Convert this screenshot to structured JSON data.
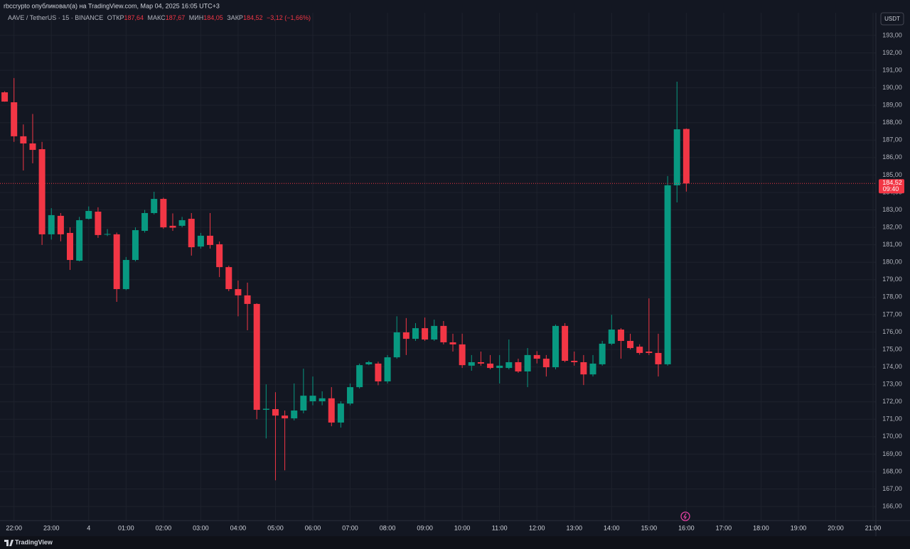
{
  "header": {
    "published": "rbccrypto опубликовал(а) на TradingView.com, Мар 04, 2025 16:05 UTC+3",
    "symbol": "AAVE / TetherUS · 15 · BINANCE",
    "open_label": "ОТКР",
    "open": "187,64",
    "high_label": "МАКС",
    "high": "187,67",
    "low_label": "МИН",
    "low": "184,05",
    "close_label": "ЗАКР",
    "close": "184,52",
    "change": "−3,12 (−1,66%)",
    "currency": "USDT"
  },
  "footer": {
    "brand": "TradingView"
  },
  "chart_data": {
    "type": "candlestick",
    "up_color": "#089981",
    "down_color": "#f23645",
    "grid": true,
    "open": [
      189.74,
      189.17,
      187.22,
      186.81,
      186.48,
      181.6,
      182.66,
      181.68,
      180.09,
      182.49,
      182.9,
      181.58,
      181.6,
      178.46,
      180.13,
      181.8,
      182.82,
      183.63,
      182.09,
      182.09,
      182.49,
      180.9,
      181.52,
      181.03,
      179.72,
      178.46,
      178.1,
      177.61,
      171.54,
      171.58,
      171.21,
      171.05,
      171.5,
      172.03,
      172.03,
      172.2,
      170.81,
      171.9,
      172.84,
      174.15,
      174.19,
      173.17,
      174.55,
      175.98,
      175.61,
      176.22,
      175.57,
      176.35,
      175.41,
      175.29,
      174.07,
      174.27,
      174.19,
      173.94,
      173.94,
      174.27,
      173.74,
      174.68,
      174.47,
      173.98,
      176.35,
      174.35,
      174.27,
      173.57,
      174.15,
      175.33,
      176.14,
      175.49,
      175.16,
      174.88,
      174.8,
      174.15,
      184.41,
      187.64
    ],
    "high": [
      189.8,
      190.56,
      187.9,
      188.5,
      186.9,
      183.1,
      182.82,
      182.0,
      182.6,
      183.2,
      183.15,
      181.9,
      181.7,
      180.3,
      182.0,
      183.0,
      184.04,
      183.7,
      182.8,
      182.6,
      182.82,
      181.68,
      182.82,
      181.19,
      179.8,
      178.95,
      178.83,
      177.65,
      173.0,
      172.55,
      171.5,
      173.05,
      173.9,
      173.45,
      172.6,
      172.84,
      172.03,
      173.05,
      174.19,
      174.35,
      174.3,
      174.68,
      176.9,
      176.8,
      176.51,
      176.83,
      176.71,
      176.63,
      175.9,
      175.9,
      174.68,
      174.88,
      174.68,
      174.68,
      175.57,
      174.47,
      175.08,
      174.9,
      174.68,
      176.43,
      176.51,
      174.88,
      174.68,
      174.68,
      175.49,
      176.99,
      176.22,
      175.9,
      175.3,
      177.93,
      175.9,
      184.94,
      190.35,
      187.67
    ],
    "low": [
      189.2,
      186.9,
      185.26,
      185.67,
      180.99,
      181.3,
      181.2,
      179.56,
      180.05,
      182.45,
      181.4,
      181.5,
      177.73,
      178.4,
      180.05,
      181.7,
      182.74,
      181.92,
      181.8,
      182.0,
      180.38,
      180.78,
      180.78,
      179.15,
      178.34,
      176.9,
      176.1,
      171.0,
      169.9,
      167.5,
      168.07,
      170.93,
      171.34,
      171.8,
      171.8,
      170.6,
      170.52,
      171.8,
      172.76,
      174.1,
      172.95,
      173.05,
      174.47,
      174.68,
      175.49,
      175.49,
      175.49,
      175.29,
      174.88,
      173.94,
      173.78,
      174.07,
      173.86,
      173.05,
      173.86,
      173.66,
      172.84,
      174.2,
      173.45,
      173.86,
      174.27,
      174.07,
      172.96,
      173.45,
      174.07,
      175.25,
      174.47,
      175.0,
      174.7,
      174.68,
      173.45,
      174.07,
      183.43,
      184.05
    ],
    "close": [
      189.21,
      187.22,
      186.81,
      186.44,
      181.6,
      182.7,
      181.6,
      180.13,
      182.41,
      182.94,
      181.56,
      181.62,
      178.46,
      180.13,
      181.84,
      182.82,
      183.63,
      182.0,
      181.98,
      182.41,
      180.86,
      181.52,
      180.99,
      179.72,
      178.46,
      178.1,
      177.61,
      171.54,
      171.6,
      171.21,
      171.05,
      171.5,
      172.35,
      172.35,
      172.2,
      170.81,
      171.9,
      172.84,
      174.1,
      174.27,
      173.17,
      174.55,
      175.98,
      175.61,
      176.22,
      175.57,
      176.35,
      175.41,
      175.29,
      174.1,
      174.27,
      174.19,
      173.94,
      174.07,
      174.27,
      173.74,
      174.68,
      174.47,
      173.98,
      176.35,
      174.35,
      174.27,
      173.57,
      174.19,
      175.33,
      176.14,
      175.49,
      175.08,
      174.8,
      174.8,
      174.15,
      184.41,
      187.62,
      184.52
    ],
    "last_price": {
      "value": 184.52,
      "label": "184,52"
    },
    "countdown": "09:40",
    "xlim": [
      -0.5,
      93.3
    ],
    "xticks": [
      {
        "value": 1,
        "label": "22:00"
      },
      {
        "value": 5,
        "label": "23:00"
      },
      {
        "value": 9,
        "label": "4"
      },
      {
        "value": 13,
        "label": "01:00"
      },
      {
        "value": 17,
        "label": "02:00"
      },
      {
        "value": 21,
        "label": "03:00"
      },
      {
        "value": 25,
        "label": "04:00"
      },
      {
        "value": 29,
        "label": "05:00"
      },
      {
        "value": 33,
        "label": "06:00"
      },
      {
        "value": 37,
        "label": "07:00"
      },
      {
        "value": 41,
        "label": "08:00"
      },
      {
        "value": 45,
        "label": "09:00"
      },
      {
        "value": 49,
        "label": "10:00"
      },
      {
        "value": 53,
        "label": "11:00"
      },
      {
        "value": 57,
        "label": "12:00"
      },
      {
        "value": 61,
        "label": "13:00"
      },
      {
        "value": 65,
        "label": "14:00"
      },
      {
        "value": 69,
        "label": "15:00"
      },
      {
        "value": 73,
        "label": "16:00"
      },
      {
        "value": 77,
        "label": "17:00"
      },
      {
        "value": 81,
        "label": "18:00"
      },
      {
        "value": 85,
        "label": "19:00"
      },
      {
        "value": 89,
        "label": "20:00"
      },
      {
        "value": 93,
        "label": "21:00"
      }
    ],
    "ylim": [
      165.19,
      194.3
    ],
    "yticks": [
      {
        "value": 166,
        "label": "166,00"
      },
      {
        "value": 167,
        "label": "167,00"
      },
      {
        "value": 168,
        "label": "168,00"
      },
      {
        "value": 169,
        "label": "169,00"
      },
      {
        "value": 170,
        "label": "170,00"
      },
      {
        "value": 171,
        "label": "171,00"
      },
      {
        "value": 172,
        "label": "172,00"
      },
      {
        "value": 173,
        "label": "173,00"
      },
      {
        "value": 174,
        "label": "174,00"
      },
      {
        "value": 175,
        "label": "175,00"
      },
      {
        "value": 176,
        "label": "176,00"
      },
      {
        "value": 177,
        "label": "177,00"
      },
      {
        "value": 178,
        "label": "178,00"
      },
      {
        "value": 179,
        "label": "179,00"
      },
      {
        "value": 180,
        "label": "180,00"
      },
      {
        "value": 181,
        "label": "181,00"
      },
      {
        "value": 182,
        "label": "182,00"
      },
      {
        "value": 183,
        "label": "183,00"
      },
      {
        "value": 184,
        "label": "184,00"
      },
      {
        "value": 185,
        "label": "185,00"
      },
      {
        "value": 186,
        "label": "186,00"
      },
      {
        "value": 187,
        "label": "187,00"
      },
      {
        "value": 188,
        "label": "188,00"
      },
      {
        "value": 189,
        "label": "189,00"
      },
      {
        "value": 190,
        "label": "190,00"
      },
      {
        "value": 191,
        "label": "191,00"
      },
      {
        "value": 192,
        "label": "192,00"
      },
      {
        "value": 193,
        "label": "193,00"
      }
    ]
  }
}
